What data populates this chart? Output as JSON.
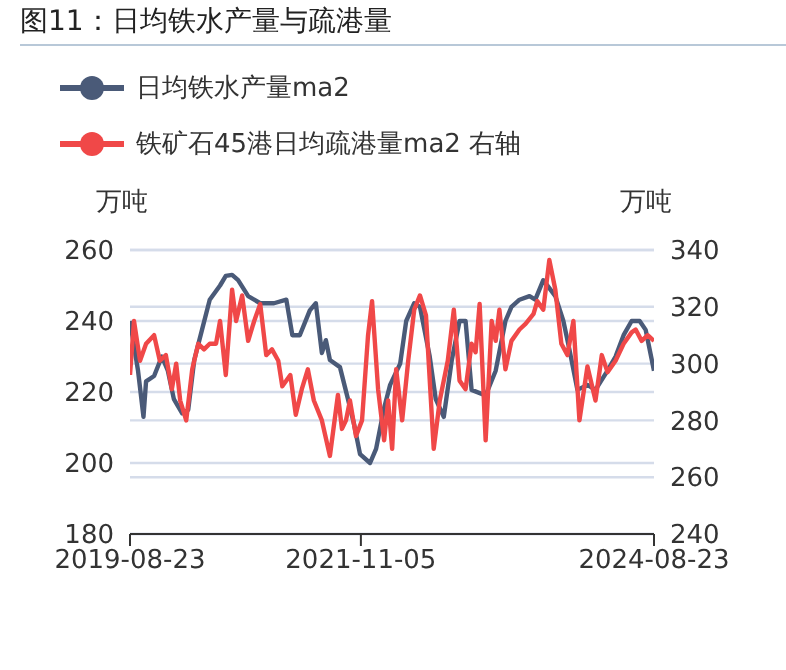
{
  "chart_data": {
    "type": "line",
    "title": "图11：日均铁水产量与疏港量",
    "ylabel": "万吨",
    "y2label": "万吨",
    "xlim": [
      "2019-08-23",
      "2024-08-23"
    ],
    "xticks": [
      "2019-08-23",
      "2021-11-05",
      "2024-08-23"
    ],
    "ylim": [
      180,
      260
    ],
    "yticks": [
      180,
      200,
      220,
      240,
      260
    ],
    "y2lim": [
      240,
      340
    ],
    "y2ticks": [
      240,
      260,
      280,
      300,
      320,
      340
    ],
    "grid": "y",
    "legend": "top left",
    "marker": "none",
    "line_style": "solid",
    "series": [
      {
        "name": "日均铁水产量ma2",
        "color": "#4a5a78",
        "x": [
          "2019-08-23",
          "2019-09-20",
          "2019-10-09",
          "2019-10-18",
          "2019-11-15",
          "2019-12-12",
          "2020-01-02",
          "2020-01-23",
          "2020-02-21",
          "2020-03-13",
          "2020-04-03",
          "2020-04-30",
          "2020-05-27",
          "2020-07-02",
          "2020-07-22",
          "2020-08-13",
          "2020-09-03",
          "2020-10-08",
          "2020-11-19",
          "2021-01-06",
          "2021-02-18",
          "2021-03-11",
          "2021-04-06",
          "2021-05-11",
          "2021-06-01",
          "2021-06-22",
          "2021-07-06",
          "2021-07-20",
          "2021-08-24",
          "2021-09-21",
          "2021-10-12",
          "2021-11-02",
          "2021-12-07",
          "2021-12-28",
          "2022-01-25",
          "2022-02-15",
          "2022-03-22",
          "2022-04-12",
          "2022-05-10",
          "2022-05-30",
          "2022-07-03",
          "2022-07-24",
          "2022-08-21",
          "2022-09-18",
          "2022-10-15",
          "2022-11-05",
          "2022-11-26",
          "2023-01-14",
          "2023-02-18",
          "2023-03-24",
          "2023-04-14",
          "2023-05-12",
          "2023-06-16",
          "2023-07-06",
          "2023-08-03",
          "2023-09-14",
          "2023-10-12",
          "2023-11-02",
          "2023-11-30",
          "2024-01-04",
          "2024-02-01",
          "2024-03-14",
          "2024-04-11",
          "2024-05-09",
          "2024-06-06",
          "2024-07-04",
          "2024-07-25",
          "2024-08-23"
        ],
        "values": [
          240,
          226,
          213,
          223,
          224.5,
          230,
          226,
          218,
          214,
          215,
          229,
          237.5,
          246,
          250,
          252.7,
          253,
          251.5,
          247,
          245,
          245,
          246,
          236,
          236,
          243,
          245,
          231,
          234.6,
          229,
          227,
          218,
          211,
          202.5,
          200,
          204,
          215.5,
          222,
          228,
          240,
          245,
          244,
          230,
          218,
          213,
          229,
          240,
          240,
          220.6,
          219,
          226,
          240,
          244,
          246,
          247,
          246,
          251.5,
          247,
          240,
          232,
          220.6,
          222,
          220.6,
          226,
          230,
          236,
          240,
          240,
          237.5,
          226
        ]
      },
      {
        "name": "铁矿石45港日均疏港量ma2 右轴",
        "color": "#f04848",
        "axis": "y2",
        "x": [
          "2019-08-23",
          "2019-09-06",
          "2019-09-27",
          "2019-10-18",
          "2019-11-15",
          "2019-12-05",
          "2019-12-26",
          "2020-01-16",
          "2020-01-31",
          "2020-02-14",
          "2020-03-06",
          "2020-03-27",
          "2020-04-17",
          "2020-05-07",
          "2020-05-27",
          "2020-06-18",
          "2020-07-02",
          "2020-07-22",
          "2020-08-13",
          "2020-08-27",
          "2020-09-17",
          "2020-10-08",
          "2020-10-29",
          "2020-11-19",
          "2020-12-10",
          "2020-12-30",
          "2021-01-21",
          "2021-02-04",
          "2021-03-04",
          "2021-03-23",
          "2021-04-13",
          "2021-05-04",
          "2021-05-25",
          "2021-06-22",
          "2021-07-20",
          "2021-08-17",
          "2021-08-31",
          "2021-09-14",
          "2021-09-28",
          "2021-10-19",
          "2021-11-09",
          "2021-11-30",
          "2021-12-14",
          "2022-01-04",
          "2022-01-25",
          "2022-02-08",
          "2022-02-22",
          "2022-03-08",
          "2022-03-29",
          "2022-04-19",
          "2022-05-10",
          "2022-05-30",
          "2022-06-20",
          "2022-07-17",
          "2022-08-07",
          "2022-09-04",
          "2022-09-25",
          "2022-10-15",
          "2022-11-05",
          "2022-11-26",
          "2022-12-10",
          "2022-12-24",
          "2023-01-14",
          "2023-02-04",
          "2023-02-18",
          "2023-03-03",
          "2023-03-24",
          "2023-04-14",
          "2023-05-12",
          "2023-06-02",
          "2023-06-30",
          "2023-07-13",
          "2023-08-03",
          "2023-08-24",
          "2023-09-14",
          "2023-10-05",
          "2023-10-26",
          "2023-11-16",
          "2023-12-07",
          "2024-01-04",
          "2024-02-01",
          "2024-02-23",
          "2024-03-14",
          "2024-04-11",
          "2024-05-09",
          "2024-06-06",
          "2024-06-20",
          "2024-07-11",
          "2024-08-01",
          "2024-08-23"
        ],
        "values": [
          296,
          315,
          301,
          307,
          310,
          301,
          303,
          291,
          300,
          287,
          280,
          298,
          307,
          305,
          307,
          307,
          315,
          296,
          326,
          315,
          324,
          308,
          315,
          321,
          303,
          305,
          301,
          292,
          296,
          282,
          291,
          298,
          287,
          280,
          267.5,
          289,
          277,
          280,
          287,
          274.5,
          280,
          310,
          322,
          291,
          273,
          287,
          270,
          298,
          280,
          301,
          319,
          324,
          317,
          270,
          287,
          301,
          319,
          294,
          291,
          307,
          304,
          321,
          273,
          315,
          308,
          319,
          298,
          308,
          312,
          314,
          317.5,
          322,
          319,
          336.5,
          326,
          307,
          303,
          315,
          280,
          299,
          287,
          303,
          297,
          301,
          307,
          311,
          312,
          308,
          310,
          308
        ]
      }
    ]
  }
}
